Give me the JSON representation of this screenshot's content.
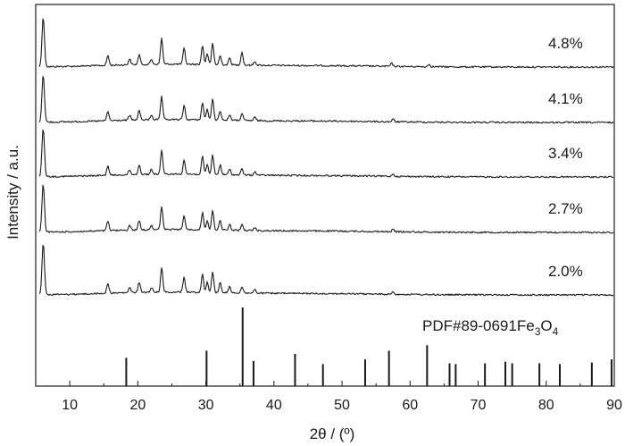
{
  "chart_data": {
    "type": "line",
    "title": "",
    "xlabel": "2θ / (º)",
    "ylabel": "Intensity / a.u.",
    "xlim": [
      5,
      90
    ],
    "xticks": [
      10,
      20,
      30,
      40,
      50,
      60,
      70,
      80,
      90
    ],
    "y_tick_labels": false,
    "grid": false,
    "series": [
      {
        "name": "4.8%",
        "peaks": [
          [
            6.1,
            1.0
          ],
          [
            15.6,
            0.2
          ],
          [
            18.8,
            0.12
          ],
          [
            20.2,
            0.2
          ],
          [
            22.0,
            0.1
          ],
          [
            23.5,
            0.52
          ],
          [
            26.8,
            0.32
          ],
          [
            29.5,
            0.38
          ],
          [
            30.2,
            0.22
          ],
          [
            31.0,
            0.42
          ],
          [
            32.1,
            0.18
          ],
          [
            33.5,
            0.14
          ],
          [
            35.3,
            0.26
          ],
          [
            37.2,
            0.08
          ],
          [
            57.3,
            0.06
          ],
          [
            62.8,
            0.05
          ]
        ]
      },
      {
        "name": "4.1%",
        "peaks": [
          [
            6.1,
            1.0
          ],
          [
            15.6,
            0.2
          ],
          [
            18.8,
            0.1
          ],
          [
            20.2,
            0.2
          ],
          [
            22.0,
            0.1
          ],
          [
            23.5,
            0.48
          ],
          [
            26.8,
            0.3
          ],
          [
            29.5,
            0.36
          ],
          [
            30.2,
            0.22
          ],
          [
            31.0,
            0.44
          ],
          [
            32.1,
            0.2
          ],
          [
            33.5,
            0.12
          ],
          [
            35.3,
            0.14
          ],
          [
            37.2,
            0.07
          ],
          [
            57.5,
            0.05
          ]
        ]
      },
      {
        "name": "3.4%",
        "peaks": [
          [
            6.1,
            1.0
          ],
          [
            15.6,
            0.2
          ],
          [
            18.8,
            0.1
          ],
          [
            20.2,
            0.2
          ],
          [
            22.0,
            0.1
          ],
          [
            23.5,
            0.48
          ],
          [
            26.8,
            0.3
          ],
          [
            29.5,
            0.36
          ],
          [
            30.2,
            0.2
          ],
          [
            31.0,
            0.4
          ],
          [
            32.1,
            0.2
          ],
          [
            33.5,
            0.12
          ],
          [
            35.3,
            0.12
          ],
          [
            37.2,
            0.07
          ],
          [
            57.5,
            0.05
          ]
        ]
      },
      {
        "name": "2.7%",
        "peaks": [
          [
            6.1,
            1.0
          ],
          [
            15.6,
            0.2
          ],
          [
            18.8,
            0.1
          ],
          [
            20.2,
            0.2
          ],
          [
            22.0,
            0.1
          ],
          [
            23.5,
            0.48
          ],
          [
            26.8,
            0.3
          ],
          [
            29.5,
            0.36
          ],
          [
            30.2,
            0.2
          ],
          [
            31.0,
            0.4
          ],
          [
            32.1,
            0.2
          ],
          [
            33.5,
            0.12
          ],
          [
            35.3,
            0.12
          ],
          [
            37.2,
            0.07
          ],
          [
            57.5,
            0.05
          ]
        ]
      },
      {
        "name": "2.0%",
        "peaks": [
          [
            6.1,
            1.0
          ],
          [
            15.6,
            0.2
          ],
          [
            18.8,
            0.1
          ],
          [
            20.2,
            0.2
          ],
          [
            22.0,
            0.1
          ],
          [
            23.5,
            0.48
          ],
          [
            26.8,
            0.3
          ],
          [
            29.5,
            0.36
          ],
          [
            30.2,
            0.2
          ],
          [
            31.0,
            0.4
          ],
          [
            32.1,
            0.2
          ],
          [
            33.5,
            0.12
          ],
          [
            35.3,
            0.12
          ],
          [
            37.2,
            0.07
          ],
          [
            57.5,
            0.05
          ]
        ]
      }
    ],
    "reference": {
      "label_prefix": "PDF#89-0691Fe",
      "label_sub1": "3",
      "label_mid": "O",
      "label_sub2": "4",
      "lines": [
        [
          18.3,
          0.36
        ],
        [
          30.1,
          0.45
        ],
        [
          35.4,
          1.0
        ],
        [
          37.0,
          0.32
        ],
        [
          43.1,
          0.41
        ],
        [
          47.2,
          0.28
        ],
        [
          53.4,
          0.34
        ],
        [
          56.9,
          0.45
        ],
        [
          62.5,
          0.52
        ],
        [
          65.8,
          0.29
        ],
        [
          66.7,
          0.28
        ],
        [
          71.0,
          0.29
        ],
        [
          74.0,
          0.31
        ],
        [
          75.0,
          0.29
        ],
        [
          79.0,
          0.29
        ],
        [
          82.0,
          0.28
        ],
        [
          86.7,
          0.3
        ],
        [
          89.6,
          0.34
        ]
      ]
    }
  }
}
